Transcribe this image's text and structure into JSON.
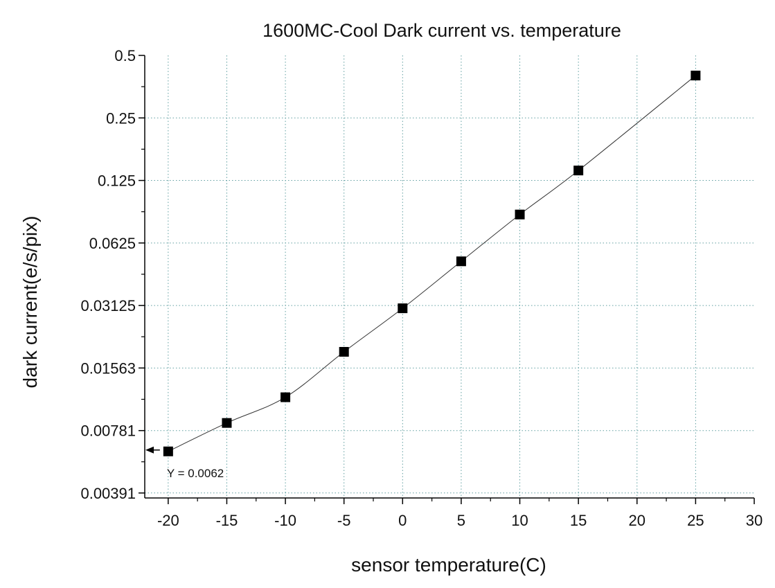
{
  "chart_data": {
    "type": "line",
    "title": "1600MC-Cool Dark current vs. temperature",
    "xlabel": "sensor temperature(C)",
    "ylabel": "dark current(e/s/pix)",
    "xlim": [
      -22,
      30
    ],
    "ylim": [
      0.0037,
      0.5
    ],
    "y_scale": "log2",
    "x_ticks": [
      -20,
      -15,
      -10,
      -5,
      0,
      5,
      10,
      15,
      20,
      25,
      30
    ],
    "x_tick_labels": [
      "-20",
      "-15",
      "-10",
      "-5",
      "0",
      "5",
      "10",
      "15",
      "20",
      "25",
      "30"
    ],
    "y_ticks": [
      0.00391,
      0.00781,
      0.01563,
      0.03125,
      0.0625,
      0.125,
      0.25,
      0.5
    ],
    "y_tick_labels": [
      "0.00391",
      "0.00781",
      "0.01563",
      "0.03125",
      "0.0625",
      "0.125",
      "0.25",
      "0.5"
    ],
    "grid": true,
    "series": [
      {
        "marker": "square",
        "color": "#000000",
        "x": [
          -20,
          -15,
          -10,
          -5,
          0,
          5,
          10,
          15,
          25
        ],
        "y": [
          0.0062,
          0.0085,
          0.0113,
          0.0187,
          0.0303,
          0.051,
          0.0857,
          0.1396,
          0.4
        ]
      }
    ],
    "annotations": [
      {
        "text": "Y = 0.0062",
        "x": -20,
        "y": 0.0062
      }
    ]
  },
  "colors": {
    "grid": "#5f9ea0",
    "axis": "#000000",
    "line": "#333333",
    "marker": "#000000"
  }
}
